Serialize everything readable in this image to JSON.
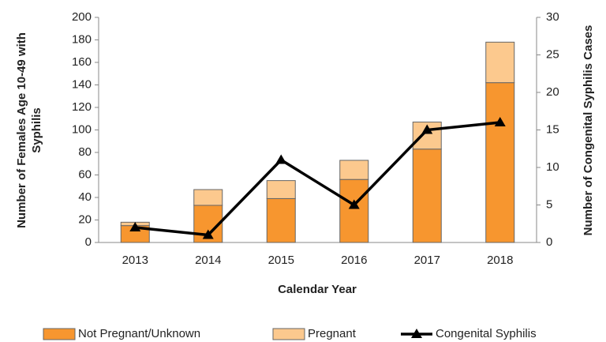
{
  "chart_data": {
    "type": "bar",
    "xlabel": "Calendar Year",
    "ylabel": [
      "Number of Females Age 10-49 with",
      "Syphilis"
    ],
    "y2label": "Number of Congenital Syphilis Cases",
    "categories": [
      "2013",
      "2014",
      "2015",
      "2016",
      "2017",
      "2018"
    ],
    "series": [
      {
        "name": "Not Pregnant/Unknown",
        "color": "#f7962f",
        "type": "bar",
        "values": [
          15,
          33,
          39,
          56,
          83,
          142
        ]
      },
      {
        "name": "Pregnant",
        "color": "#fcc98e",
        "type": "bar",
        "values": [
          3,
          14,
          16,
          17,
          24,
          36
        ]
      },
      {
        "name": "Congenital Syphilis",
        "color": "#000000",
        "type": "line",
        "axis": "y2",
        "values": [
          2,
          1,
          11,
          5,
          15,
          16
        ]
      }
    ],
    "stacked": true,
    "ylim": [
      0,
      200
    ],
    "yticks": [
      0,
      20,
      40,
      60,
      80,
      100,
      120,
      140,
      160,
      180,
      200
    ],
    "y2lim": [
      0,
      30
    ],
    "y2ticks": [
      0,
      5,
      10,
      15,
      20,
      25,
      30
    ],
    "legend": "bottom"
  }
}
